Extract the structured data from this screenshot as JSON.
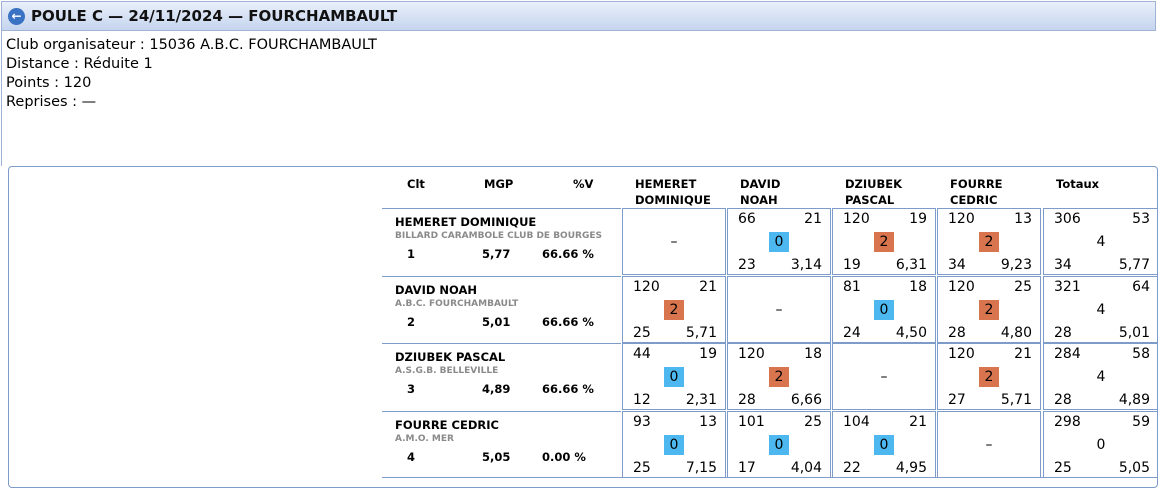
{
  "header": {
    "title": "POULE C — 24/11/2024 — FOURCHAMBAULT",
    "back_icon": "arrow-left-icon"
  },
  "info": {
    "club": "Club organisateur : 15036 A.B.C. FOURCHAMBAULT",
    "distance": "Distance : Réduite 1",
    "points": "Points : 120",
    "reprises": "Reprises : —"
  },
  "columns": {
    "clt": "Clt",
    "mgp": "MGP",
    "pv": "%V",
    "p1a": "HEMERET",
    "p1b": "DOMINIQUE",
    "p2a": "DAVID",
    "p2b": "NOAH",
    "p3a": "DZIUBEK",
    "p3b": "PASCAL",
    "p4a": "FOURRE",
    "p4b": "CEDRIC",
    "totaux": "Totaux"
  },
  "rows": [
    {
      "name": "HEMERET DOMINIQUE",
      "club": "BILLARD CARAMBOLE CLUB DE BOURGES",
      "pos": "1",
      "mgp": "5,77",
      "pv": "66.66 %",
      "cells": [
        null,
        {
          "pts": "66",
          "rep": "21",
          "score": "0",
          "result": "lose",
          "serie": "23",
          "moy": "3,14"
        },
        {
          "pts": "120",
          "rep": "19",
          "score": "2",
          "result": "win",
          "serie": "19",
          "moy": "6,31"
        },
        {
          "pts": "120",
          "rep": "13",
          "score": "2",
          "result": "win",
          "serie": "34",
          "moy": "9,23"
        }
      ],
      "totals": {
        "pts": "306",
        "rep": "53",
        "score": "4",
        "serie": "34",
        "moy": "5,77"
      }
    },
    {
      "name": "DAVID NOAH",
      "club": "A.B.C. FOURCHAMBAULT",
      "pos": "2",
      "mgp": "5,01",
      "pv": "66.66 %",
      "cells": [
        {
          "pts": "120",
          "rep": "21",
          "score": "2",
          "result": "win",
          "serie": "25",
          "moy": "5,71"
        },
        null,
        {
          "pts": "81",
          "rep": "18",
          "score": "0",
          "result": "lose",
          "serie": "24",
          "moy": "4,50"
        },
        {
          "pts": "120",
          "rep": "25",
          "score": "2",
          "result": "win",
          "serie": "28",
          "moy": "4,80"
        }
      ],
      "totals": {
        "pts": "321",
        "rep": "64",
        "score": "4",
        "serie": "28",
        "moy": "5,01"
      }
    },
    {
      "name": "DZIUBEK PASCAL",
      "club": "A.S.G.B. BELLEVILLE",
      "pos": "3",
      "mgp": "4,89",
      "pv": "66.66 %",
      "cells": [
        {
          "pts": "44",
          "rep": "19",
          "score": "0",
          "result": "lose",
          "serie": "12",
          "moy": "2,31"
        },
        {
          "pts": "120",
          "rep": "18",
          "score": "2",
          "result": "win",
          "serie": "28",
          "moy": "6,66"
        },
        null,
        {
          "pts": "120",
          "rep": "21",
          "score": "2",
          "result": "win",
          "serie": "27",
          "moy": "5,71"
        }
      ],
      "totals": {
        "pts": "284",
        "rep": "58",
        "score": "4",
        "serie": "28",
        "moy": "4,89"
      }
    },
    {
      "name": "FOURRE CEDRIC",
      "club": "A.M.O. MER",
      "pos": "4",
      "mgp": "5,05",
      "pv": "0.00 %",
      "cells": [
        {
          "pts": "93",
          "rep": "13",
          "score": "0",
          "result": "lose",
          "serie": "25",
          "moy": "7,15"
        },
        {
          "pts": "101",
          "rep": "25",
          "score": "0",
          "result": "lose",
          "serie": "17",
          "moy": "4,04"
        },
        {
          "pts": "104",
          "rep": "21",
          "score": "0",
          "result": "lose",
          "serie": "22",
          "moy": "4,95"
        },
        null
      ],
      "totals": {
        "pts": "298",
        "rep": "59",
        "score": "0",
        "serie": "25",
        "moy": "5,05"
      }
    }
  ],
  "empty_cell": "–",
  "colors": {
    "win": "#d9754e",
    "lose": "#4db8f0",
    "border": "#7e9cc9"
  }
}
